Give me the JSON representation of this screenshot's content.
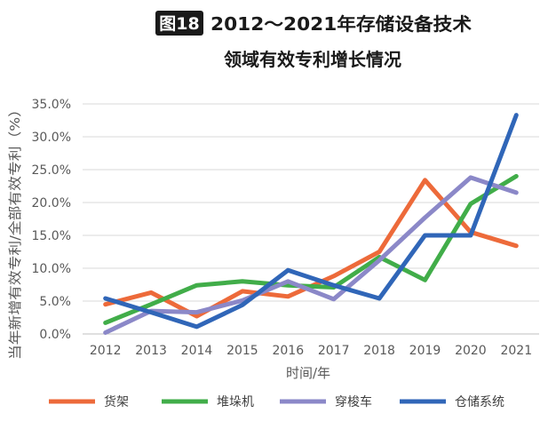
{
  "figure": {
    "badge": "图18",
    "title_line1": "2012～2021年存储设备技术",
    "title_line2": "领域有效专利增长情况"
  },
  "chart_data": {
    "type": "line",
    "xlabel": "时间/年",
    "ylabel": "当年新增有效专利/全部有效专利（%）",
    "x": [
      "2012",
      "2013",
      "2014",
      "2015",
      "2016",
      "2017",
      "2018",
      "2019",
      "2020",
      "2021"
    ],
    "ylim": [
      0,
      35
    ],
    "yticks": [
      "0.0%",
      "5.0%",
      "10.0%",
      "15.0%",
      "20.0%",
      "25.0%",
      "30.0%",
      "35.0%"
    ],
    "grid": true,
    "legend_position": "bottom",
    "series": [
      {
        "name": "货架",
        "color": "#ed6a3a",
        "values": [
          4.5,
          6.3,
          2.7,
          6.5,
          5.7,
          8.8,
          12.5,
          23.4,
          15.5,
          13.4
        ]
      },
      {
        "name": "堆垛机",
        "color": "#41ad49",
        "values": [
          1.7,
          4.5,
          7.4,
          8.0,
          7.4,
          7.1,
          11.7,
          8.2,
          19.8,
          24.0
        ]
      },
      {
        "name": "穿梭车",
        "color": "#8b88c8",
        "values": [
          0.2,
          3.5,
          3.3,
          5.1,
          8.0,
          5.3,
          11.2,
          17.7,
          23.8,
          21.5
        ]
      },
      {
        "name": "仓储系统",
        "color": "#3066b8",
        "values": [
          5.4,
          3.3,
          1.1,
          4.4,
          9.7,
          7.4,
          5.4,
          15.0,
          15.0,
          33.3
        ]
      }
    ]
  }
}
